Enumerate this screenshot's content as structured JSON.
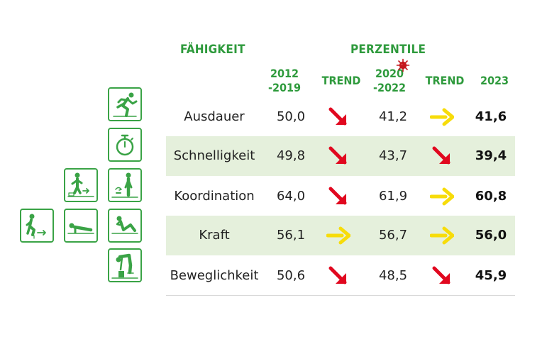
{
  "header": {
    "skill_title": "FÄHIGKEIT",
    "percentile_title": "PERZENTILE",
    "col_2012_a": "2012",
    "col_2012_b": "-2019",
    "trend1": "TREND",
    "col_2020_a": "2020",
    "col_2020_b": "-2022",
    "trend2": "TREND",
    "col_2023": "2023"
  },
  "rows": [
    {
      "skill": "Ausdauer",
      "v2012": "50,0",
      "trend1": "down",
      "v2020": "41,2",
      "trend2": "flat",
      "v2023": "41,6"
    },
    {
      "skill": "Schnelligkeit",
      "v2012": "49,8",
      "trend1": "down",
      "v2020": "43,7",
      "trend2": "down",
      "v2023": "39,4"
    },
    {
      "skill": "Koordination",
      "v2012": "64,0",
      "trend1": "down",
      "v2020": "61,9",
      "trend2": "flat",
      "v2023": "60,8"
    },
    {
      "skill": "Kraft",
      "v2012": "56,1",
      "trend1": "flat",
      "v2020": "56,7",
      "trend2": "flat",
      "v2023": "56,0"
    },
    {
      "skill": "Beweglichkeit",
      "v2012": "50,6",
      "trend1": "down",
      "v2020": "48,5",
      "trend2": "down",
      "v2023": "45,9"
    }
  ],
  "colors": {
    "header_green": "#2e9a3c",
    "arrow_down": "#e1081f",
    "arrow_flat": "#f7dc0a",
    "row_shade": "#e5f0dc",
    "icon_green": "#3aa346",
    "virus_red": "#c4161c"
  },
  "icons": [
    "runner-icon",
    "stopwatch-icon",
    "sidestep-icon",
    "balance-icon",
    "standing-jump-icon",
    "pushup-icon",
    "situp-icon",
    "forward-bend-icon"
  ]
}
